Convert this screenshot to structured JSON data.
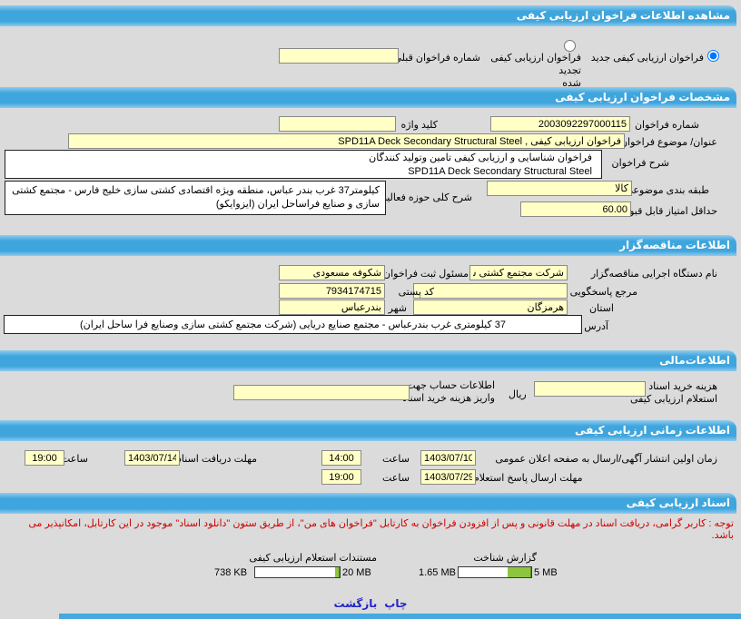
{
  "colors": {
    "header_bar": "#3FA5DD",
    "field_bg": "#FFFFC6",
    "notice_red": "#D00000",
    "link_blue": "#2323C8",
    "progress_green": "#8CC63E",
    "page_bg": "#DBDBDB"
  },
  "title_bar": "مشاهده اطلاعات فراخوان ارزیابی کیفی",
  "call_type": {
    "new_label": "فراخوان ارزیابی کیفی جدید",
    "new_checked": "checked",
    "renewed_lines": [
      "فراخوان ارزیابی کیفی تجدید",
      "شده"
    ],
    "previous_number_label": "شماره فراخوان قبلی",
    "previous_number_value": ""
  },
  "specifications": {
    "header": "مشخصات فراخوان ارزیابی کیفی",
    "call_number_label": "شماره فراخوان",
    "call_number": "2003092297000115",
    "keyword_label": "کلید واژه",
    "keyword": "",
    "title_label": "عنوان/ موضوع فراخوان",
    "title_value": "فراخوان ارزیابی کیفی , SPD11A Deck Secondary Structural Steel",
    "description_label": "شرح فراخوان",
    "description_lines": [
      "فراخوان شناسایی و ارزیابی کیفی تامین وتولید کنندگان",
      "SPD11A Deck Secondary  Structural Steel"
    ],
    "category_label": "طبقه بندی موضوعی",
    "category": "کالا",
    "activity_label": "شرح کلی حوزه فعالیت",
    "activity_lines": [
      "کیلومتر37 غرب بندر عباس، منطقه ویژه اقتصادی کشتی سازی خلیج فارس - مجتمع کشتی",
      "سازی و صنایع فراساحل ایران (ایزوایکو)"
    ],
    "min_score_label": "حداقل امتیاز قابل قبول ارزیابی کیفی",
    "min_score": "60.00"
  },
  "tenderer": {
    "header": "اطلاعات مناقصه‌گزار",
    "agency_label": "نام دستگاه اجرایی مناقصه‌گزار",
    "agency": "شرکت مجتمع کشتی سازی",
    "registrar_label": "مسئول ثبت فراخوان",
    "registrar": "شکوفه مسعودی",
    "contact_label": "مرجع پاسخگویی",
    "contact": "",
    "postal_label": "کد پستی",
    "postal_code": "7934174715",
    "province_label": "استان",
    "province": "هرمزگان",
    "city_label": "شهر",
    "city": "بندرعباس",
    "address_label": "آدرس",
    "address": "37  کیلومتری غرب بندرعباس - مجتمع  صنایع  دریایی (شرکت مجتمع کشتی سازی  وصنایع فرا ساحل ایران)"
  },
  "financial": {
    "header": "اطلاعات‌مالی",
    "doc_cost_label_lines": [
      "هزینه خرید اسناد",
      "استعلام  ارزیابی کیفی"
    ],
    "doc_cost": "",
    "currency_label": "ریال",
    "account_label_lines": [
      "اطلاعات حساب جهت",
      "واریز  هزینه خرید اسناد"
    ],
    "account": ""
  },
  "schedule": {
    "header": "اطلاعات زمانی ارزیابی کیفی",
    "publish_label": "زمان اولین انتشار آگهی/ارسال به  صفحه اعلان عمومی",
    "publish_date": "1403/07/10",
    "hour_label": "ساعت",
    "publish_time": "14:00",
    "receive_deadline_label": "مهلت دریافت اسناد",
    "receive_deadline_date": "1403/07/14",
    "receive_deadline_time": "19:00",
    "response_deadline_label": "مهلت ارسال پاسخ استعلام",
    "response_deadline_date": "1403/07/29",
    "response_deadline_time": "19:00"
  },
  "documents": {
    "header": "اسناد ارزیابی کیفی",
    "notice": "توجه : کاربر گرامی، دریافت اسناد در مهلت قانونی و پس از افزودن فراخوان به کارتابل \"فراخوان های من\"، از طریق ستون \"دانلود اسناد\" موجود در این کارتابل، امکانپذیر می باشد.",
    "recognition_report": {
      "label": "گزارش شناخت",
      "current": "1.65 MB",
      "max": "5 MB",
      "percent": 33
    },
    "inquiry_docs": {
      "label": "مستندات استعلام ارزیابی کیفی",
      "current": "738 KB",
      "max": "20 MB",
      "percent": 5
    }
  },
  "footer": {
    "print_label": "چاپ",
    "back_label": "بازگشت"
  }
}
